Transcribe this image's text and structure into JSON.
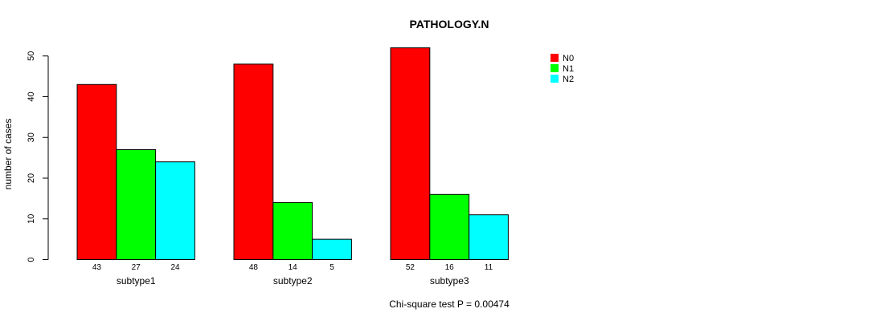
{
  "chart_data": {
    "type": "bar",
    "title": "PATHOLOGY.N",
    "ylabel": "number of cases",
    "xlabel": "",
    "ylim": [
      0,
      52
    ],
    "yticks": [
      0,
      10,
      20,
      30,
      40,
      50
    ],
    "categories": [
      "subtype1",
      "subtype2",
      "subtype3"
    ],
    "series": [
      {
        "name": "N0",
        "color": "#ff0000",
        "values": [
          43,
          48,
          52
        ]
      },
      {
        "name": "N1",
        "color": "#00ff00",
        "values": [
          27,
          14,
          16
        ]
      },
      {
        "name": "N2",
        "color": "#00ffff",
        "values": [
          24,
          5,
          11
        ]
      }
    ],
    "legend_position": "top-right",
    "grid": false,
    "footnote": "Chi-square test P = 0.00474"
  }
}
